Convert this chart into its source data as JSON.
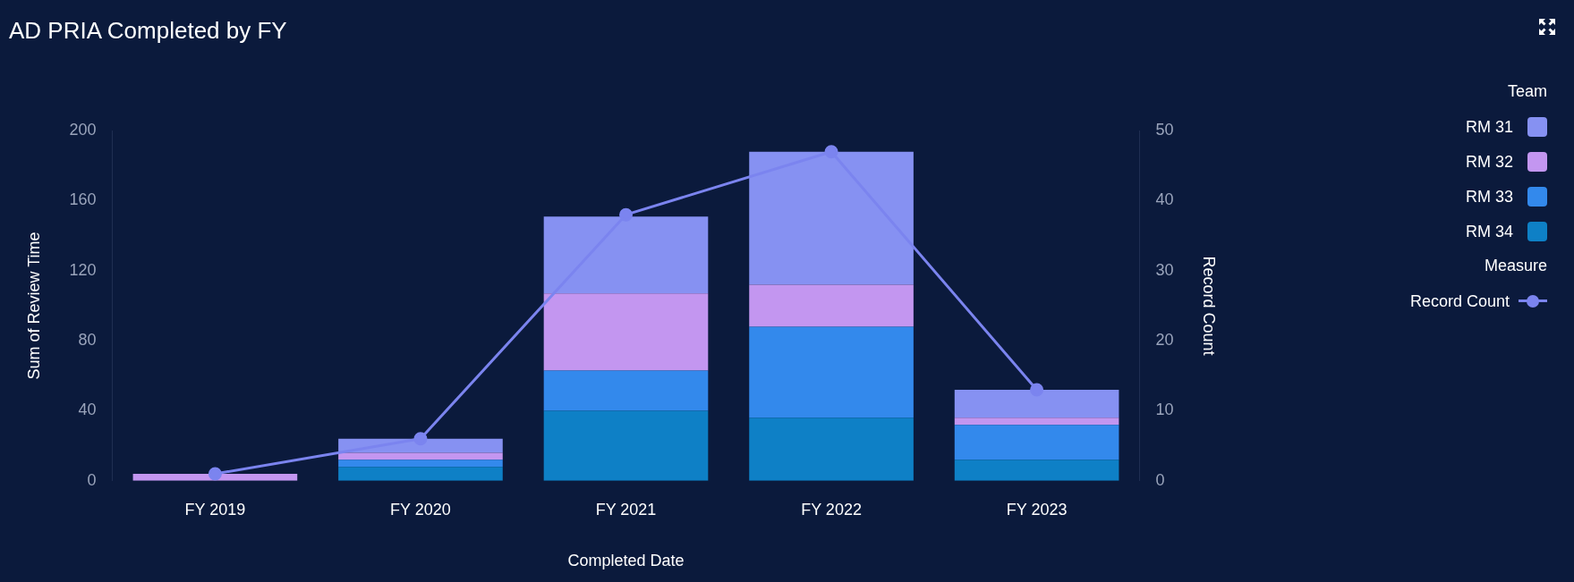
{
  "chart_data": {
    "type": "bar",
    "title": "AD PRIA Completed by FY",
    "xlabel": "Completed Date",
    "ylabel": "Sum of Review Time",
    "y2label": "Record Count",
    "legend_title": "Team",
    "annotations": [
      "Measure"
    ],
    "categories": [
      "FY 2019",
      "FY 2020",
      "FY 2021",
      "FY 2022",
      "FY 2023"
    ],
    "stacked": true,
    "ylim": [
      0,
      200
    ],
    "yticks": [
      0,
      40,
      80,
      120,
      160,
      200
    ],
    "y2lim": [
      0,
      50
    ],
    "y2ticks": [
      0,
      10,
      20,
      30,
      40,
      50
    ],
    "grid": false,
    "legend": "top right",
    "series": [
      {
        "name": "RM 34",
        "color": "#0e80c6",
        "values": [
          null,
          8,
          40,
          36,
          12
        ]
      },
      {
        "name": "RM 33",
        "color": "#3389ec",
        "values": [
          null,
          4,
          23,
          52,
          20
        ]
      },
      {
        "name": "RM 32",
        "color": "#c396f0",
        "values": [
          4,
          4,
          44,
          24,
          4
        ]
      },
      {
        "name": "RM 31",
        "color": "#8691f2",
        "values": [
          null,
          8,
          44,
          76,
          16
        ]
      },
      {
        "name": "Record Count",
        "type": "line",
        "axis": "y2",
        "color": "#7b84ef",
        "marker": "circle",
        "values": [
          1,
          6,
          38,
          47,
          13
        ]
      }
    ]
  }
}
